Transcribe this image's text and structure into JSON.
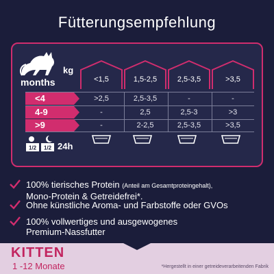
{
  "title": "Fütterungsempfehlung",
  "colors": {
    "background": "#1b1d3a",
    "accent": "#d12d6e",
    "footer": "#e3cfe1"
  },
  "table": {
    "kg_label": "kg",
    "months_label": "months",
    "weights": [
      "<1,5",
      "1,5-2,5",
      "2,5-3,5",
      ">3,5"
    ],
    "rows": [
      {
        "age": "<4",
        "values": [
          ">2,5",
          "2,5-3,5",
          "-",
          "-"
        ]
      },
      {
        "age": "4-9",
        "values": [
          "-",
          "2,5",
          "2,5-3",
          ">3"
        ]
      },
      {
        "age": ">9",
        "values": [
          "-",
          "2-2,5",
          "2,5-3,5",
          ">3,5"
        ]
      }
    ],
    "per_day_label": "24h",
    "day_icon": {
      "name": "sun-moon-icon",
      "fractions": [
        "1/2",
        "1/2"
      ]
    },
    "tray_icon": "food-tray-icon",
    "cat_icon": "cat-silhouette-icon"
  },
  "features": [
    {
      "main": "100% tierisches Protein ",
      "note": "(Anteil am Gesamtproteingehalt),",
      "line2": "Mono-Protein & Getreidefrei*."
    },
    {
      "main": "Ohne künstliche Aroma- und Farbstoffe oder GVOs",
      "note": "",
      "line2": ""
    },
    {
      "main": "100% vollwertiges und ausgewogenes",
      "note": "",
      "line2": "Premium-Nassfutter"
    }
  ],
  "footer": {
    "label": "KITTEN",
    "range": "1 -12 Monate",
    "footnote": "*Hergestellt in einer getreideverarbeitenden Fabrik"
  }
}
